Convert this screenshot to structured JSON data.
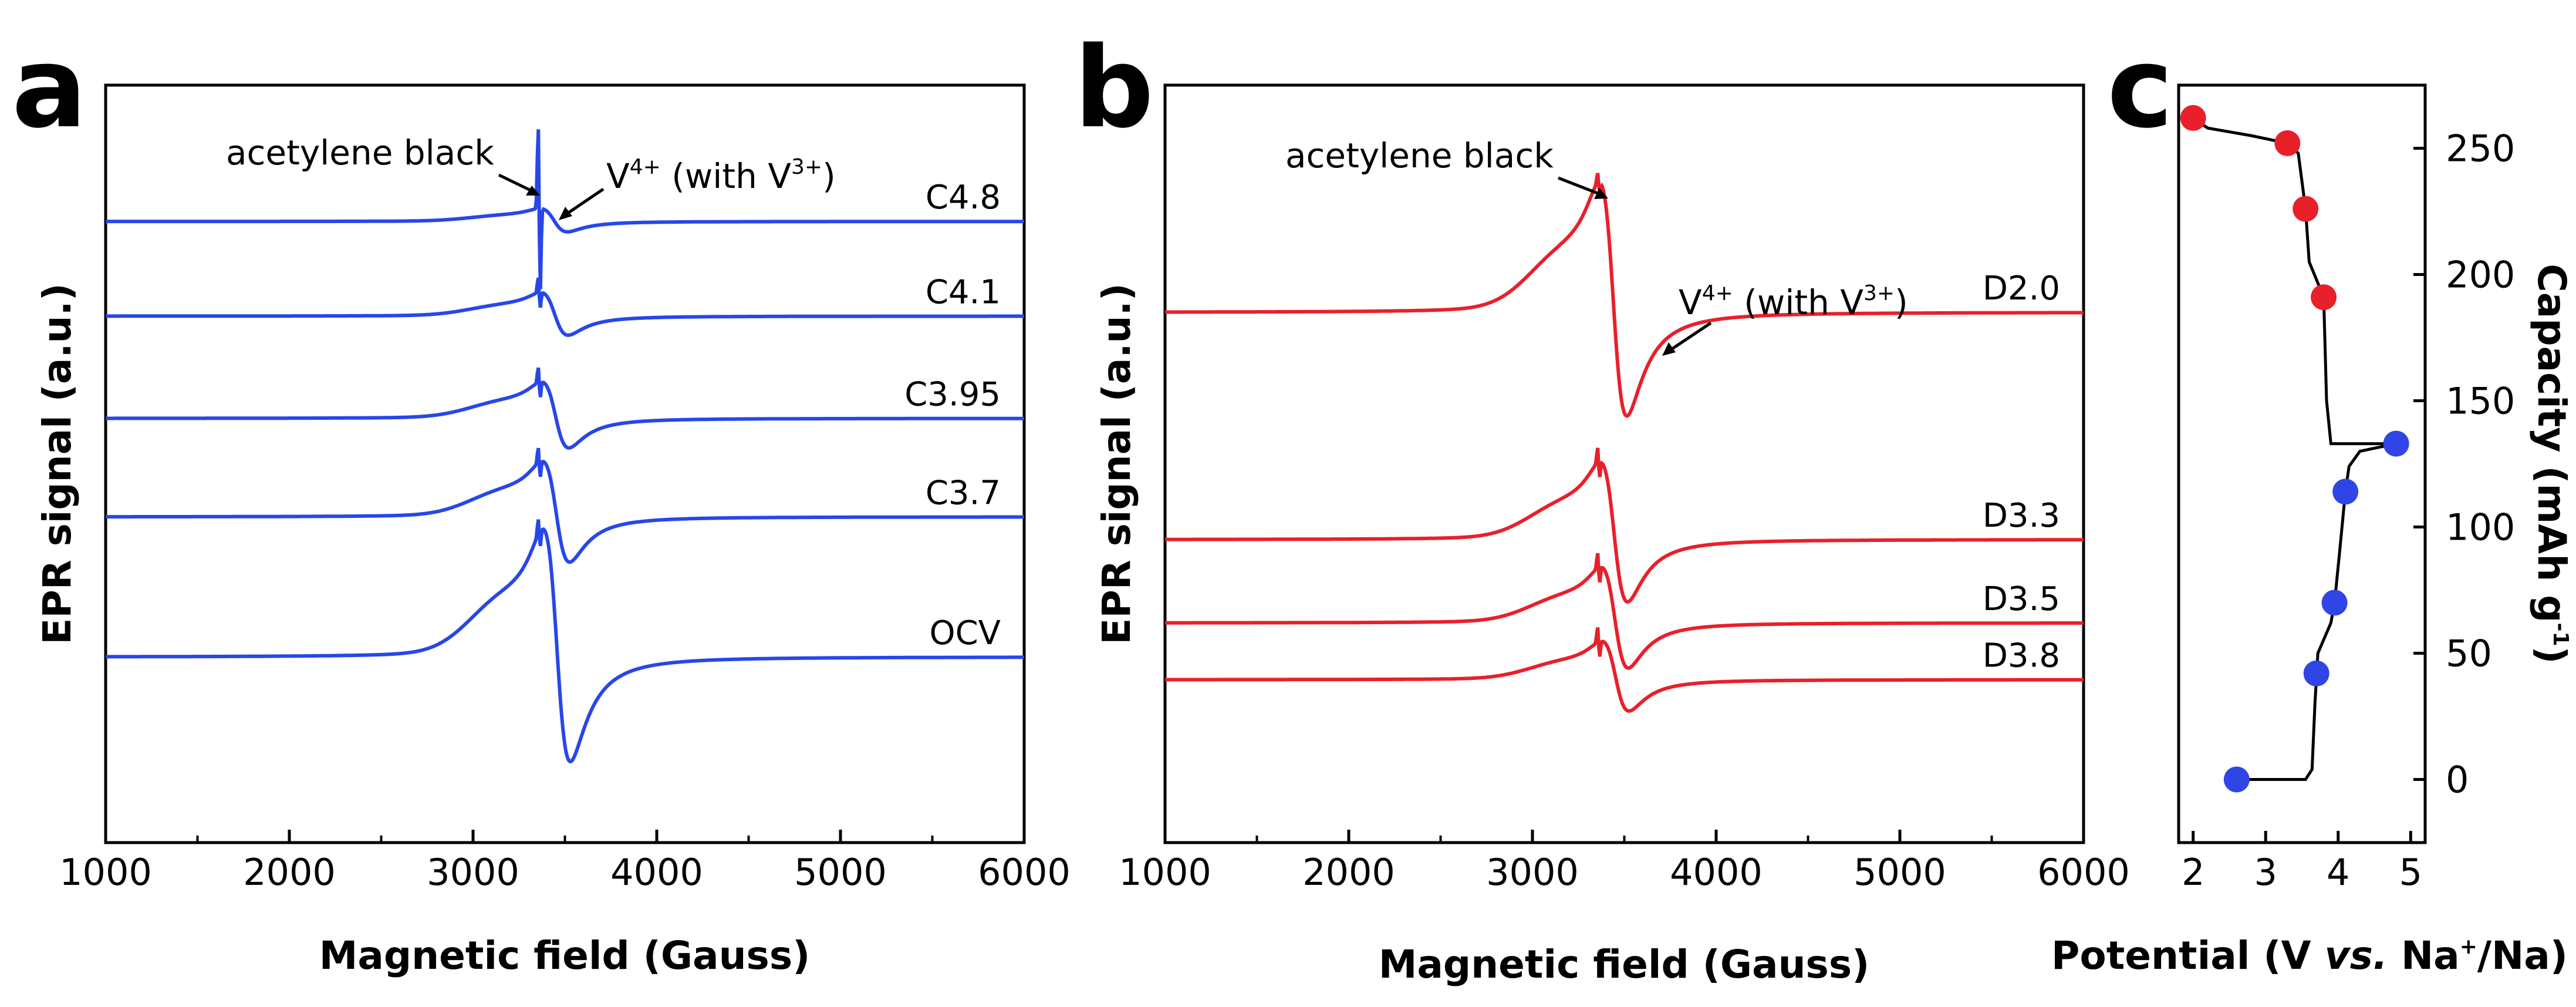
{
  "chart_data": [
    {
      "panel": "a",
      "type": "line",
      "xlabel": "Magnetic field (Gauss)",
      "ylabel": "EPR signal (a.u.)",
      "xlim": [
        1000,
        6000
      ],
      "xticks": [
        "1000",
        "2000",
        "3000",
        "4000",
        "5000",
        "6000"
      ],
      "color": "#2747e8",
      "series": [
        {
          "name": "C4.8",
          "baseline": 0.82,
          "amp": 0.03,
          "narrow": 0.16,
          "vshape": [
            3340,
            3380,
            3550,
            0.11
          ]
        },
        {
          "name": "C4.1",
          "baseline": 0.695,
          "amp": 0.055,
          "narrow": 0.03,
          "vshape": [
            3370,
            3410,
            3600,
            0.14
          ]
        },
        {
          "name": "C3.95",
          "baseline": 0.56,
          "amp": 0.085,
          "narrow": 0.03,
          "vshape": [
            3380,
            3420,
            3620,
            0.16
          ]
        },
        {
          "name": "C3.7",
          "baseline": 0.43,
          "amp": 0.13,
          "narrow": 0.03,
          "vshape": [
            3390,
            3430,
            3640,
            0.18
          ]
        },
        {
          "name": "OCV",
          "baseline": 0.245,
          "amp": 0.3,
          "narrow": 0.03,
          "vshape": [
            3400,
            3440,
            3660,
            0.2
          ]
        }
      ],
      "annotations": [
        {
          "text": "acetylene black"
        },
        {
          "text_main": "V",
          "sup1": "4+",
          "text_mid": " (with V",
          "sup2": "3+",
          "text_end": ")"
        }
      ]
    },
    {
      "panel": "b",
      "type": "line",
      "xlabel": "Magnetic field (Gauss)",
      "ylabel": "EPR signal (a.u.)",
      "xlim": [
        1000,
        6000
      ],
      "xticks": [
        "1000",
        "2000",
        "3000",
        "4000",
        "5000",
        "6000"
      ],
      "color": "#e8202a",
      "series": [
        {
          "name": "D2.0",
          "baseline": 0.7,
          "amp": 0.3,
          "narrow": 0.02
        },
        {
          "name": "D3.3",
          "baseline": 0.4,
          "amp": 0.18,
          "narrow": 0.03
        },
        {
          "name": "D3.5",
          "baseline": 0.29,
          "amp": 0.13,
          "narrow": 0.03
        },
        {
          "name": "D3.8",
          "baseline": 0.215,
          "amp": 0.09,
          "narrow": 0.03
        }
      ],
      "annotations": [
        {
          "text": "acetylene black"
        },
        {
          "text_main": "V",
          "sup1": "4+",
          "text_mid": " (with V",
          "sup2": "3+",
          "text_end": ")"
        }
      ]
    },
    {
      "panel": "c",
      "type": "scatter",
      "xlabel_parts": [
        "Potential (V ",
        "vs.",
        " Na",
        "+",
        "/Na)"
      ],
      "ylabel_parts": [
        "Capacity (mAh g",
        "-1",
        ")"
      ],
      "xlim": [
        1.8,
        5.2
      ],
      "ylim": [
        -25,
        275
      ],
      "xticks": [
        "2",
        "3",
        "4",
        "5"
      ],
      "yticks": [
        "0",
        "50",
        "100",
        "150",
        "200",
        "250"
      ],
      "charge_color": "#2f45e6",
      "discharge_color": "#e8202a",
      "charge_points": [
        [
          2.6,
          0
        ],
        [
          3.7,
          42
        ],
        [
          3.95,
          70
        ],
        [
          4.1,
          114
        ],
        [
          4.8,
          133
        ]
      ],
      "discharge_points": [
        [
          4.8,
          133
        ],
        [
          3.8,
          191
        ],
        [
          3.55,
          226
        ],
        [
          3.3,
          252
        ],
        [
          2.0,
          262
        ]
      ]
    }
  ],
  "panel_letters": {
    "a": "a",
    "b": "b",
    "c": "c"
  }
}
